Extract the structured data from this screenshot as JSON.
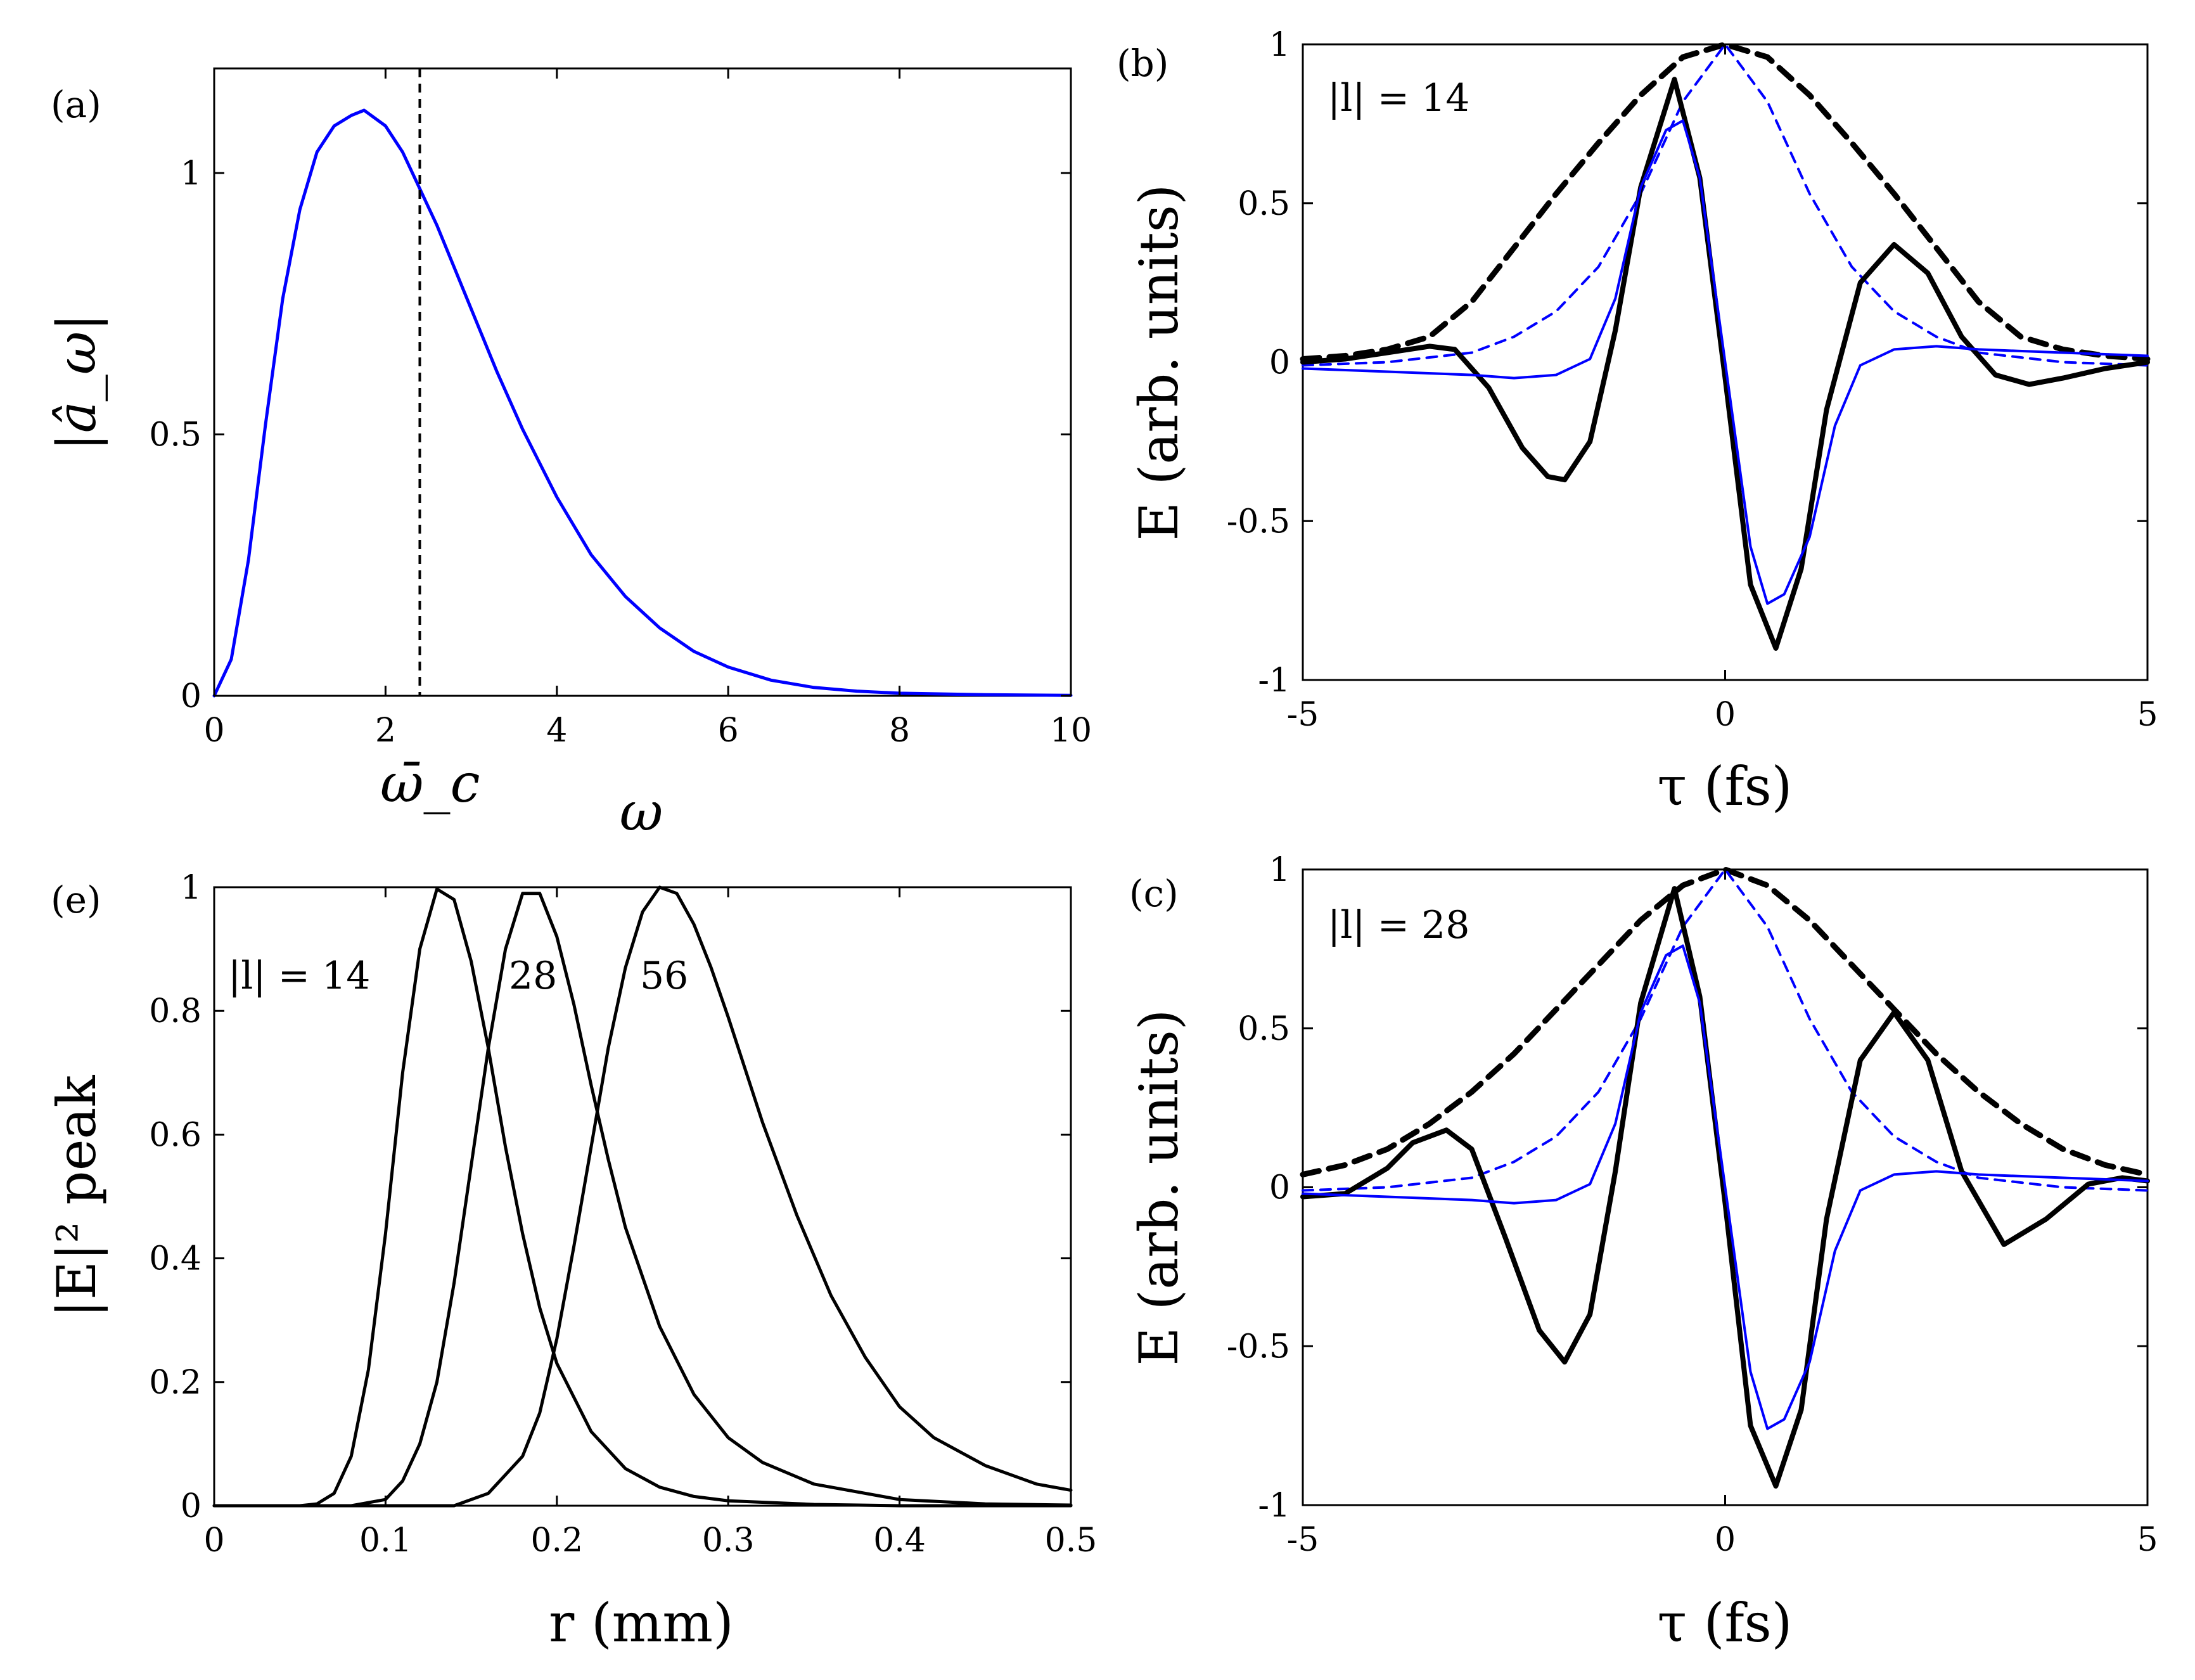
{
  "chart_data": [
    {
      "id": "a",
      "type": "line",
      "panel_label": "(a)",
      "xlabel": "ω",
      "ylabel": "|â_ω|",
      "xlim": [
        0,
        10
      ],
      "ylim": [
        0,
        1.2
      ],
      "xticks": [
        "0",
        "2",
        "4",
        "6",
        "8",
        "10"
      ],
      "yticks": [
        "0",
        "0.5",
        "1"
      ],
      "extra_xtick_label": "ω̄_c",
      "vline_x": 2.4,
      "series": [
        {
          "name": "|â_ω|",
          "color": "#0000ff",
          "style": "solid",
          "x": [
            0,
            0.2,
            0.4,
            0.6,
            0.8,
            1.0,
            1.2,
            1.4,
            1.6,
            1.75,
            2.0,
            2.2,
            2.4,
            2.6,
            2.8,
            3.0,
            3.3,
            3.6,
            4.0,
            4.4,
            4.8,
            5.2,
            5.6,
            6.0,
            6.5,
            7.0,
            7.5,
            8.0,
            9.0,
            10.0
          ],
          "y": [
            0,
            0.07,
            0.26,
            0.52,
            0.76,
            0.93,
            1.04,
            1.09,
            1.11,
            1.12,
            1.09,
            1.04,
            0.97,
            0.9,
            0.82,
            0.74,
            0.62,
            0.51,
            0.38,
            0.27,
            0.19,
            0.13,
            0.085,
            0.055,
            0.03,
            0.016,
            0.009,
            0.005,
            0.002,
            0.001
          ]
        }
      ]
    },
    {
      "id": "b",
      "type": "line",
      "panel_label": "(b)",
      "annotation": "|l| = 14",
      "xlabel": "τ (fs)",
      "ylabel": "E (arb. units)",
      "xlim": [
        -5,
        5
      ],
      "ylim": [
        -1,
        1
      ],
      "xticks": [
        "-5",
        "0",
        "5"
      ],
      "yticks": [
        "-1",
        "-0.5",
        "0",
        "0.5",
        "1"
      ],
      "series": [
        {
          "name": "black envelope",
          "color": "#000000",
          "style": "dashed-thick",
          "x": [
            -5,
            -4.5,
            -4,
            -3.5,
            -3,
            -2.5,
            -2,
            -1.5,
            -1,
            -0.5,
            0,
            0.5,
            1,
            1.5,
            2,
            2.5,
            3,
            3.5,
            4,
            4.5,
            5
          ],
          "y": [
            0.01,
            0.02,
            0.04,
            0.08,
            0.19,
            0.36,
            0.53,
            0.69,
            0.84,
            0.96,
            1.0,
            0.96,
            0.84,
            0.69,
            0.53,
            0.36,
            0.19,
            0.08,
            0.04,
            0.02,
            0.01
          ]
        },
        {
          "name": "blue envelope",
          "color": "#0000ff",
          "style": "dashed-thin",
          "x": [
            -5,
            -4,
            -3,
            -2.5,
            -2,
            -1.5,
            -1,
            -0.5,
            0,
            0.5,
            1,
            1.5,
            2,
            2.5,
            3,
            4,
            5
          ],
          "y": [
            -0.01,
            0.0,
            0.03,
            0.08,
            0.16,
            0.3,
            0.53,
            0.82,
            1.0,
            0.82,
            0.53,
            0.3,
            0.16,
            0.08,
            0.03,
            0.0,
            -0.01
          ]
        },
        {
          "name": "black field",
          "color": "#000000",
          "style": "solid-thick",
          "x": [
            -5,
            -4.5,
            -4,
            -3.5,
            -3.2,
            -2.8,
            -2.4,
            -2.1,
            -1.9,
            -1.6,
            -1.3,
            -1.0,
            -0.6,
            -0.3,
            0,
            0.3,
            0.6,
            0.9,
            1.2,
            1.6,
            2.0,
            2.4,
            2.8,
            3.2,
            3.6,
            4.0,
            4.5,
            5.0
          ],
          "y": [
            0.0,
            0.01,
            0.03,
            0.05,
            0.04,
            -0.08,
            -0.27,
            -0.36,
            -0.37,
            -0.25,
            0.1,
            0.55,
            0.89,
            0.58,
            -0.05,
            -0.7,
            -0.9,
            -0.65,
            -0.15,
            0.25,
            0.37,
            0.28,
            0.08,
            -0.04,
            -0.07,
            -0.05,
            -0.02,
            0.0
          ]
        },
        {
          "name": "blue field",
          "color": "#0000ff",
          "style": "solid-thin",
          "x": [
            -5,
            -4,
            -3,
            -2.5,
            -2,
            -1.6,
            -1.3,
            -1.0,
            -0.7,
            -0.5,
            -0.3,
            0,
            0.3,
            0.5,
            0.7,
            1.0,
            1.3,
            1.6,
            2.0,
            2.5,
            3.0,
            4.0,
            5.0
          ],
          "y": [
            -0.02,
            -0.03,
            -0.04,
            -0.05,
            -0.04,
            0.01,
            0.2,
            0.55,
            0.73,
            0.76,
            0.58,
            0.0,
            -0.58,
            -0.76,
            -0.73,
            -0.55,
            -0.2,
            -0.01,
            0.04,
            0.05,
            0.04,
            0.03,
            0.02
          ]
        }
      ]
    },
    {
      "id": "c",
      "type": "line",
      "panel_label": "(c)",
      "annotation": "|l| = 28",
      "xlabel": "τ (fs)",
      "ylabel": "E (arb. units)",
      "xlim": [
        -5,
        5
      ],
      "ylim": [
        -1,
        1
      ],
      "xticks": [
        "-5",
        "0",
        "5"
      ],
      "yticks": [
        "-1",
        "-0.5",
        "0",
        "0.5",
        "1"
      ],
      "series": [
        {
          "name": "black envelope",
          "color": "#000000",
          "style": "dashed-thick",
          "x": [
            -5,
            -4.5,
            -4,
            -3.5,
            -3,
            -2.5,
            -2,
            -1.5,
            -1,
            -0.5,
            0,
            0.5,
            1,
            1.5,
            2,
            2.5,
            3,
            3.5,
            4,
            4.5,
            5
          ],
          "y": [
            0.04,
            0.07,
            0.12,
            0.2,
            0.3,
            0.42,
            0.56,
            0.7,
            0.84,
            0.95,
            1.0,
            0.95,
            0.84,
            0.7,
            0.56,
            0.42,
            0.3,
            0.2,
            0.12,
            0.07,
            0.04
          ]
        },
        {
          "name": "blue envelope",
          "color": "#0000ff",
          "style": "dashed-thin",
          "x": [
            -5,
            -4,
            -3,
            -2.5,
            -2,
            -1.5,
            -1,
            -0.5,
            0,
            0.5,
            1,
            1.5,
            2,
            2.5,
            3,
            4,
            5
          ],
          "y": [
            -0.01,
            0.0,
            0.03,
            0.08,
            0.16,
            0.3,
            0.53,
            0.82,
            1.0,
            0.82,
            0.53,
            0.3,
            0.16,
            0.08,
            0.03,
            0.0,
            -0.01
          ]
        },
        {
          "name": "black field",
          "color": "#000000",
          "style": "solid-thick",
          "x": [
            -5,
            -4.5,
            -4,
            -3.7,
            -3.3,
            -3.0,
            -2.6,
            -2.2,
            -1.9,
            -1.6,
            -1.3,
            -1.0,
            -0.6,
            -0.3,
            0,
            0.3,
            0.6,
            0.9,
            1.2,
            1.6,
            2.0,
            2.4,
            2.8,
            3.3,
            3.8,
            4.3,
            4.7,
            5.0
          ],
          "y": [
            -0.03,
            -0.02,
            0.06,
            0.14,
            0.18,
            0.12,
            -0.16,
            -0.45,
            -0.55,
            -0.4,
            0.05,
            0.58,
            0.94,
            0.6,
            -0.05,
            -0.75,
            -0.94,
            -0.7,
            -0.1,
            0.4,
            0.55,
            0.4,
            0.05,
            -0.18,
            -0.1,
            0.01,
            0.03,
            0.02
          ]
        },
        {
          "name": "blue field",
          "color": "#0000ff",
          "style": "solid-thin",
          "x": [
            -5,
            -4,
            -3,
            -2.5,
            -2,
            -1.6,
            -1.3,
            -1.0,
            -0.7,
            -0.5,
            -0.3,
            0,
            0.3,
            0.5,
            0.7,
            1.0,
            1.3,
            1.6,
            2.0,
            2.5,
            3.0,
            4.0,
            5.0
          ],
          "y": [
            -0.02,
            -0.03,
            -0.04,
            -0.05,
            -0.04,
            0.01,
            0.2,
            0.55,
            0.73,
            0.76,
            0.58,
            0.0,
            -0.58,
            -0.76,
            -0.73,
            -0.55,
            -0.2,
            -0.01,
            0.04,
            0.05,
            0.04,
            0.03,
            0.02
          ]
        }
      ]
    },
    {
      "id": "e",
      "type": "line",
      "panel_label": "(e)",
      "xlabel": "r (mm)",
      "ylabel": "|E|² peak",
      "xlim": [
        0,
        0.5
      ],
      "ylim": [
        0,
        1
      ],
      "xticks": [
        "0",
        "0.1",
        "0.2",
        "0.3",
        "0.4",
        "0.5"
      ],
      "yticks": [
        "0",
        "0.2",
        "0.4",
        "0.6",
        "0.8",
        "1"
      ],
      "curve_labels": [
        "|l| = 14",
        "28",
        "56"
      ],
      "series": [
        {
          "name": "|l| = 14",
          "color": "#000000",
          "style": "solid",
          "x": [
            0,
            0.05,
            0.06,
            0.07,
            0.08,
            0.09,
            0.1,
            0.11,
            0.12,
            0.13,
            0.14,
            0.15,
            0.16,
            0.17,
            0.18,
            0.19,
            0.2,
            0.22,
            0.24,
            0.26,
            0.28,
            0.3,
            0.35,
            0.4,
            0.5
          ],
          "y": [
            0,
            0.0,
            0.003,
            0.02,
            0.08,
            0.22,
            0.44,
            0.7,
            0.9,
            0.997,
            0.98,
            0.88,
            0.74,
            0.58,
            0.44,
            0.32,
            0.23,
            0.12,
            0.06,
            0.03,
            0.015,
            0.008,
            0.002,
            0.0,
            0.0
          ]
        },
        {
          "name": "28",
          "color": "#000000",
          "style": "solid",
          "x": [
            0,
            0.08,
            0.1,
            0.11,
            0.12,
            0.13,
            0.14,
            0.15,
            0.16,
            0.17,
            0.18,
            0.19,
            0.2,
            0.21,
            0.22,
            0.23,
            0.24,
            0.26,
            0.28,
            0.3,
            0.32,
            0.35,
            0.4,
            0.45,
            0.5
          ],
          "y": [
            0,
            0.0,
            0.01,
            0.04,
            0.1,
            0.2,
            0.36,
            0.55,
            0.74,
            0.9,
            0.99,
            0.99,
            0.92,
            0.81,
            0.68,
            0.56,
            0.45,
            0.29,
            0.18,
            0.11,
            0.07,
            0.035,
            0.01,
            0.003,
            0.001
          ]
        },
        {
          "name": "56",
          "color": "#000000",
          "style": "solid",
          "x": [
            0,
            0.14,
            0.16,
            0.18,
            0.19,
            0.2,
            0.21,
            0.22,
            0.23,
            0.24,
            0.25,
            0.26,
            0.27,
            0.28,
            0.29,
            0.3,
            0.32,
            0.34,
            0.36,
            0.38,
            0.4,
            0.42,
            0.45,
            0.48,
            0.5
          ],
          "y": [
            0,
            0.0,
            0.02,
            0.08,
            0.15,
            0.27,
            0.42,
            0.58,
            0.74,
            0.87,
            0.96,
            1.0,
            0.99,
            0.94,
            0.87,
            0.79,
            0.62,
            0.47,
            0.34,
            0.24,
            0.16,
            0.11,
            0.065,
            0.035,
            0.025
          ]
        }
      ]
    }
  ]
}
